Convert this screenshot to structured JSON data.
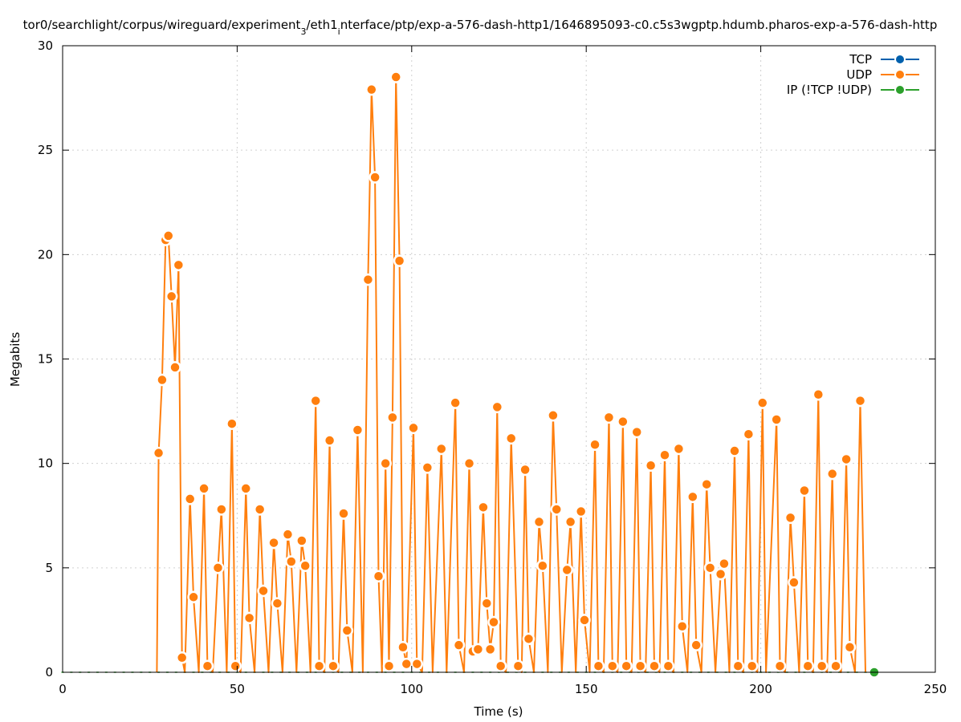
{
  "chart_data": {
    "type": "line",
    "title": "tor0/searchlight/corpus/wireguard/experiment",
    "title_sub1": "3",
    "title_mid": "/eth1",
    "title_sub2": "i",
    "title_end": "nterface/ptp/exp-a-576-dash-http1/1646895093-c0.c5s3wgptp.hdumb.pharos-exp-a-576-dash-http",
    "xlabel": "Time (s)",
    "ylabel": "Megabits",
    "xlim": [
      0,
      250
    ],
    "ylim": [
      0,
      30
    ],
    "x_ticks": [
      0,
      50,
      100,
      150,
      200,
      250
    ],
    "y_ticks": [
      0,
      5,
      10,
      15,
      20,
      25,
      30
    ],
    "grid": true,
    "legend_position": "top-right",
    "series": [
      {
        "name": "TCP",
        "color": "#0060ad",
        "points": []
      },
      {
        "name": "UDP",
        "color": "#ff7f0e",
        "points": [
          [
            27,
            0
          ],
          [
            27.5,
            10.5
          ],
          [
            28.5,
            14.0
          ],
          [
            29.5,
            20.7
          ],
          [
            30.3,
            20.9
          ],
          [
            31.2,
            18.0
          ],
          [
            32.2,
            14.6
          ],
          [
            33.2,
            19.5
          ],
          [
            34.2,
            0.7
          ],
          [
            35,
            0
          ],
          [
            36.5,
            8.3
          ],
          [
            37.5,
            3.6
          ],
          [
            39,
            0
          ],
          [
            40.5,
            8.8
          ],
          [
            41.5,
            0.3
          ],
          [
            43,
            0
          ],
          [
            44.5,
            5.0
          ],
          [
            45.5,
            7.8
          ],
          [
            47,
            0
          ],
          [
            48.5,
            11.9
          ],
          [
            49.5,
            0.3
          ],
          [
            51,
            0
          ],
          [
            52.5,
            8.8
          ],
          [
            53.5,
            2.6
          ],
          [
            55,
            0
          ],
          [
            56.5,
            7.8
          ],
          [
            57.5,
            3.9
          ],
          [
            59,
            0
          ],
          [
            60.5,
            6.2
          ],
          [
            61.5,
            3.3
          ],
          [
            63,
            0
          ],
          [
            64.5,
            6.6
          ],
          [
            65.5,
            5.3
          ],
          [
            67,
            0
          ],
          [
            68.5,
            6.3
          ],
          [
            69.5,
            5.1
          ],
          [
            71,
            0
          ],
          [
            72.5,
            13.0
          ],
          [
            73.5,
            0.3
          ],
          [
            75,
            0
          ],
          [
            76.5,
            11.1
          ],
          [
            77.5,
            0.3
          ],
          [
            79,
            0
          ],
          [
            80.5,
            7.6
          ],
          [
            81.5,
            2.0
          ],
          [
            83,
            0
          ],
          [
            84.5,
            11.6
          ],
          [
            86,
            0
          ],
          [
            87.5,
            18.8
          ],
          [
            88.5,
            27.9
          ],
          [
            89.5,
            23.7
          ],
          [
            90.5,
            4.6
          ],
          [
            91.5,
            0
          ],
          [
            92.5,
            10.0
          ],
          [
            93.5,
            0.3
          ],
          [
            94.5,
            12.2
          ],
          [
            95.5,
            28.5
          ],
          [
            96.5,
            19.7
          ],
          [
            97.5,
            1.2
          ],
          [
            98.5,
            0.4
          ],
          [
            100.5,
            11.7
          ],
          [
            101.5,
            0.4
          ],
          [
            103,
            0
          ],
          [
            104.5,
            9.8
          ],
          [
            106,
            0
          ],
          [
            108.5,
            10.7
          ],
          [
            110,
            0
          ],
          [
            112.5,
            12.9
          ],
          [
            113.5,
            1.3
          ],
          [
            115,
            0
          ],
          [
            116.5,
            10.0
          ],
          [
            117.5,
            1.0
          ],
          [
            119,
            1.1
          ],
          [
            120.5,
            7.9
          ],
          [
            121.5,
            3.3
          ],
          [
            122.5,
            1.1
          ],
          [
            123.5,
            2.4
          ],
          [
            124.5,
            12.7
          ],
          [
            125.5,
            0.3
          ],
          [
            127,
            0
          ],
          [
            128.5,
            11.2
          ],
          [
            130.5,
            0.3
          ],
          [
            131.5,
            0
          ],
          [
            132.5,
            9.7
          ],
          [
            133.5,
            1.6
          ],
          [
            135,
            0
          ],
          [
            136.5,
            7.2
          ],
          [
            137.5,
            5.1
          ],
          [
            139,
            0
          ],
          [
            140.5,
            12.3
          ],
          [
            141.5,
            7.8
          ],
          [
            143,
            0
          ],
          [
            144.5,
            4.9
          ],
          [
            145.5,
            7.2
          ],
          [
            147,
            0
          ],
          [
            148.5,
            7.7
          ],
          [
            149.5,
            2.5
          ],
          [
            151,
            0
          ],
          [
            152.5,
            10.9
          ],
          [
            153.5,
            0.3
          ],
          [
            155,
            0
          ],
          [
            156.5,
            12.2
          ],
          [
            157.5,
            0.3
          ],
          [
            159,
            0
          ],
          [
            160.5,
            12.0
          ],
          [
            161.5,
            0.3
          ],
          [
            163,
            0
          ],
          [
            164.5,
            11.5
          ],
          [
            165.5,
            0.3
          ],
          [
            167,
            0
          ],
          [
            168.5,
            9.9
          ],
          [
            169.5,
            0.3
          ],
          [
            171,
            0
          ],
          [
            172.5,
            10.4
          ],
          [
            173.5,
            0.3
          ],
          [
            175,
            0
          ],
          [
            176.5,
            10.7
          ],
          [
            177.5,
            2.2
          ],
          [
            179,
            0
          ],
          [
            180.5,
            8.4
          ],
          [
            181.5,
            1.3
          ],
          [
            183,
            0
          ],
          [
            184.5,
            9.0
          ],
          [
            185.5,
            5.0
          ],
          [
            187,
            0
          ],
          [
            188.5,
            4.7
          ],
          [
            189.5,
            5.2
          ],
          [
            191,
            0
          ],
          [
            192.5,
            10.6
          ],
          [
            193.5,
            0.3
          ],
          [
            195,
            0
          ],
          [
            196.5,
            11.4
          ],
          [
            197.5,
            0.3
          ],
          [
            199,
            0
          ],
          [
            200.5,
            12.9
          ],
          [
            201.5,
            0
          ],
          [
            204.5,
            12.1
          ],
          [
            205.5,
            0.3
          ],
          [
            207,
            0
          ],
          [
            208.5,
            7.4
          ],
          [
            209.5,
            4.3
          ],
          [
            211,
            0
          ],
          [
            212.5,
            8.7
          ],
          [
            213.5,
            0.3
          ],
          [
            215,
            0
          ],
          [
            216.5,
            13.3
          ],
          [
            217.5,
            0.3
          ],
          [
            219,
            0
          ],
          [
            220.5,
            9.5
          ],
          [
            221.5,
            0.3
          ],
          [
            223,
            0
          ],
          [
            224.5,
            10.2
          ],
          [
            225.5,
            1.2
          ],
          [
            227,
            0
          ],
          [
            228.5,
            13.0
          ],
          [
            230,
            0
          ]
        ]
      },
      {
        "name": "IP (!TCP  !UDP)",
        "color": "#2ca02c",
        "points": [
          [
            232.5,
            0
          ]
        ]
      }
    ],
    "tcp_baseline": {
      "from": 0,
      "to": 232,
      "step": 2.5,
      "y": 0
    }
  }
}
